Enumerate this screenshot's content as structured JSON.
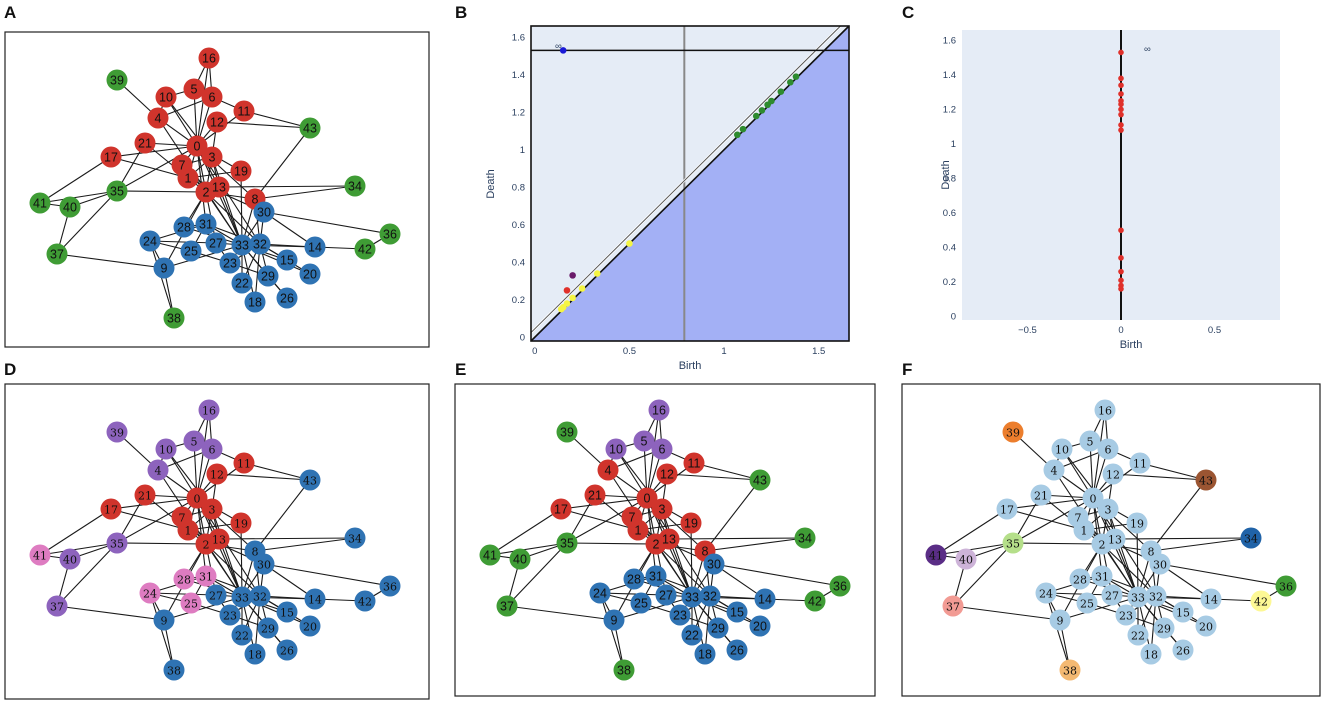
{
  "panel_labels": {
    "A": "A",
    "B": "B",
    "C": "C",
    "D": "D",
    "E": "E",
    "F": "F"
  },
  "colors": {
    "red": "#d0342c",
    "green": "#3f9c35",
    "blue": "#2f73b3",
    "purple": "#8d63bd",
    "pink": "#de7cc1",
    "lightblue": "#a7cbe4",
    "orange": "#ec7e2d",
    "brown": "#9b5532",
    "navy": "#2063a8",
    "darkpurple": "#5a2d86",
    "lavender": "#cdb3d8",
    "lightgreen": "#b5df8a",
    "salmon": "#f29b94",
    "peach": "#f4b972",
    "yellow": "#fdf895",
    "plotbg": "#e5ecf6",
    "fill": "#a3b0f5"
  },
  "graph": {
    "nodes": [
      "0",
      "1",
      "2",
      "3",
      "4",
      "5",
      "6",
      "7",
      "8",
      "9",
      "10",
      "11",
      "12",
      "13",
      "14",
      "15",
      "16",
      "17",
      "18",
      "19",
      "20",
      "21",
      "22",
      "23",
      "24",
      "25",
      "26",
      "27",
      "28",
      "29",
      "30",
      "31",
      "32",
      "33",
      "34",
      "35",
      "36",
      "37",
      "38",
      "39",
      "40",
      "41",
      "42",
      "43"
    ],
    "edges": [
      [
        0,
        1
      ],
      [
        0,
        2
      ],
      [
        0,
        3
      ],
      [
        0,
        4
      ],
      [
        0,
        5
      ],
      [
        0,
        6
      ],
      [
        0,
        7
      ],
      [
        0,
        8
      ],
      [
        0,
        10
      ],
      [
        0,
        11
      ],
      [
        0,
        12
      ],
      [
        0,
        13
      ],
      [
        0,
        16
      ],
      [
        0,
        17
      ],
      [
        0,
        19
      ],
      [
        0,
        21
      ],
      [
        0,
        31
      ],
      [
        0,
        33
      ],
      [
        0,
        32
      ],
      [
        1,
        2
      ],
      [
        1,
        3
      ],
      [
        1,
        7
      ],
      [
        1,
        13
      ],
      [
        1,
        17
      ],
      [
        1,
        19
      ],
      [
        1,
        21
      ],
      [
        1,
        30
      ],
      [
        2,
        3
      ],
      [
        2,
        7
      ],
      [
        2,
        8
      ],
      [
        2,
        9
      ],
      [
        2,
        13
      ],
      [
        2,
        27
      ],
      [
        2,
        28
      ],
      [
        2,
        32
      ],
      [
        2,
        33
      ],
      [
        3,
        7
      ],
      [
        3,
        12
      ],
      [
        3,
        13
      ],
      [
        3,
        33
      ],
      [
        4,
        6
      ],
      [
        4,
        10
      ],
      [
        4,
        39
      ],
      [
        4,
        33
      ],
      [
        5,
        6
      ],
      [
        5,
        10
      ],
      [
        5,
        16
      ],
      [
        6,
        16
      ],
      [
        6,
        11
      ],
      [
        8,
        30
      ],
      [
        8,
        32
      ],
      [
        8,
        33
      ],
      [
        8,
        43
      ],
      [
        9,
        33
      ],
      [
        9,
        38
      ],
      [
        9,
        24
      ],
      [
        13,
        33
      ],
      [
        14,
        32
      ],
      [
        14,
        33
      ],
      [
        15,
        32
      ],
      [
        15,
        33
      ],
      [
        18,
        32
      ],
      [
        18,
        33
      ],
      [
        19,
        33
      ],
      [
        20,
        32
      ],
      [
        20,
        33
      ],
      [
        22,
        32
      ],
      [
        22,
        33
      ],
      [
        23,
        25
      ],
      [
        23,
        27
      ],
      [
        23,
        29
      ],
      [
        23,
        32
      ],
      [
        23,
        33
      ],
      [
        24,
        25
      ],
      [
        24,
        27
      ],
      [
        24,
        31
      ],
      [
        25,
        31
      ],
      [
        26,
        29
      ],
      [
        26,
        33
      ],
      [
        27,
        33
      ],
      [
        28,
        31
      ],
      [
        28,
        33
      ],
      [
        29,
        32
      ],
      [
        29,
        33
      ],
      [
        30,
        32
      ],
      [
        30,
        33
      ],
      [
        31,
        32
      ],
      [
        31,
        33
      ],
      [
        32,
        33
      ],
      [
        12,
        43
      ],
      [
        13,
        34
      ],
      [
        30,
        36
      ],
      [
        42,
        36
      ],
      [
        14,
        42
      ],
      [
        35,
        0
      ],
      [
        35,
        2
      ],
      [
        35,
        41
      ],
      [
        35,
        40
      ],
      [
        40,
        41
      ],
      [
        40,
        37
      ],
      [
        37,
        9
      ],
      [
        17,
        41
      ],
      [
        21,
        35
      ],
      [
        8,
        34
      ],
      [
        11,
        43
      ],
      [
        30,
        14
      ],
      [
        10,
        3
      ],
      [
        37,
        35
      ],
      [
        38,
        24
      ]
    ]
  },
  "panel_A": {
    "colors": [
      "red",
      "red",
      "red",
      "red",
      "red",
      "red",
      "red",
      "red",
      "red",
      "blue",
      "red",
      "red",
      "red",
      "red",
      "blue",
      "blue",
      "red",
      "red",
      "blue",
      "red",
      "blue",
      "red",
      "blue",
      "blue",
      "blue",
      "blue",
      "blue",
      "blue",
      "blue",
      "blue",
      "blue",
      "blue",
      "blue",
      "blue",
      "green",
      "green",
      "green",
      "green",
      "green",
      "green",
      "green",
      "green",
      "green",
      "green"
    ]
  },
  "panel_D": {
    "colors": [
      "red",
      "red",
      "red",
      "red",
      "purple",
      "purple",
      "purple",
      "red",
      "blue",
      "blue",
      "purple",
      "red",
      "red",
      "red",
      "blue",
      "blue",
      "purple",
      "red",
      "blue",
      "red",
      "blue",
      "red",
      "blue",
      "blue",
      "pink",
      "pink",
      "blue",
      "blue",
      "pink",
      "blue",
      "blue",
      "pink",
      "blue",
      "blue",
      "blue",
      "purple",
      "blue",
      "purple",
      "blue",
      "purple",
      "purple",
      "pink",
      "blue",
      "blue"
    ]
  },
  "panel_E": {
    "colors": [
      "red",
      "red",
      "red",
      "red",
      "red",
      "purple",
      "purple",
      "red",
      "red",
      "blue",
      "purple",
      "red",
      "red",
      "red",
      "blue",
      "blue",
      "purple",
      "red",
      "blue",
      "red",
      "blue",
      "red",
      "blue",
      "blue",
      "blue",
      "blue",
      "blue",
      "blue",
      "blue",
      "blue",
      "blue",
      "blue",
      "blue",
      "blue",
      "green",
      "green",
      "green",
      "green",
      "green",
      "green",
      "green",
      "green",
      "green",
      "green"
    ]
  },
  "panel_F": {
    "colors": [
      "lightblue",
      "lightblue",
      "lightblue",
      "lightblue",
      "lightblue",
      "lightblue",
      "lightblue",
      "lightblue",
      "lightblue",
      "lightblue",
      "lightblue",
      "lightblue",
      "lightblue",
      "lightblue",
      "lightblue",
      "lightblue",
      "lightblue",
      "lightblue",
      "lightblue",
      "lightblue",
      "lightblue",
      "lightblue",
      "lightblue",
      "lightblue",
      "lightblue",
      "lightblue",
      "lightblue",
      "lightblue",
      "lightblue",
      "lightblue",
      "lightblue",
      "lightblue",
      "lightblue",
      "lightblue",
      "navy",
      "lightgreen",
      "green",
      "salmon",
      "peach",
      "orange",
      "lavender",
      "darkpurple",
      "yellow",
      "brown"
    ]
  },
  "chart_data": [
    {
      "type": "scatter",
      "panel": "B",
      "title": "",
      "xlabel": "Birth",
      "ylabel": "Death",
      "xlim": [
        -0.02,
        1.66
      ],
      "ylim": [
        -0.02,
        1.66
      ],
      "xticks": [
        "0",
        "0.5",
        "1",
        "1.5"
      ],
      "yticks": [
        "0",
        "0.2",
        "0.4",
        "0.6",
        "0.8",
        "1",
        "1.2",
        "1.4",
        "1.6"
      ],
      "infinity_label": "∞",
      "infinity_level": 1.53,
      "vertical_line_x": 0.79,
      "series": [
        {
          "name": "blue",
          "color": "#1a1ad6",
          "points": [
            [
              0.15,
              1.53
            ]
          ]
        },
        {
          "name": "purple",
          "color": "#6a1b6a",
          "points": [
            [
              0.2,
              0.33
            ]
          ]
        },
        {
          "name": "red",
          "color": "#e0302a",
          "points": [
            [
              0.17,
              0.25
            ]
          ]
        },
        {
          "name": "yellow",
          "color": "#f5f542",
          "points": [
            [
              0.5,
              0.5
            ],
            [
              0.33,
              0.34
            ],
            [
              0.25,
              0.26
            ],
            [
              0.2,
              0.21
            ],
            [
              0.17,
              0.18
            ],
            [
              0.15,
              0.16
            ],
            [
              0.14,
              0.15
            ]
          ]
        },
        {
          "name": "green",
          "color": "#2e8b2e",
          "points": [
            [
              1.07,
              1.08
            ],
            [
              1.1,
              1.11
            ],
            [
              1.17,
              1.18
            ],
            [
              1.2,
              1.21
            ],
            [
              1.23,
              1.24
            ],
            [
              1.25,
              1.26
            ],
            [
              1.3,
              1.31
            ],
            [
              1.35,
              1.36
            ],
            [
              1.38,
              1.39
            ]
          ]
        }
      ]
    },
    {
      "type": "scatter",
      "panel": "C",
      "title": "",
      "xlabel": "Birth",
      "ylabel": "Death",
      "xlim": [
        -0.85,
        0.85
      ],
      "ylim": [
        -0.02,
        1.66
      ],
      "xticks": [
        "−0.5",
        "0",
        "0.5"
      ],
      "yticks": [
        "0",
        "0.2",
        "0.4",
        "0.6",
        "0.8",
        "1",
        "1.2",
        "1.4",
        "1.6"
      ],
      "infinity_label": "∞",
      "series": [
        {
          "name": "red",
          "color": "#e0302a",
          "x": 0,
          "values": [
            1.53,
            1.38,
            1.34,
            1.29,
            1.25,
            1.23,
            1.2,
            1.17,
            1.11,
            1.08,
            0.5,
            0.34,
            0.26,
            0.21,
            0.18,
            0.16
          ]
        }
      ]
    }
  ]
}
